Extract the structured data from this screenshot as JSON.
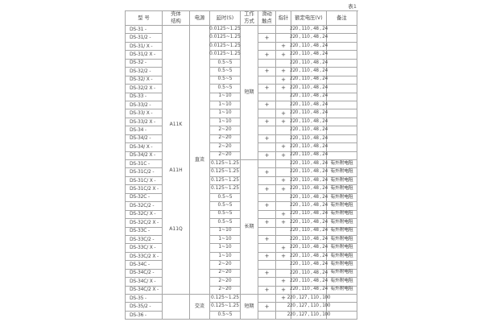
{
  "page": {
    "table_label": "表1"
  },
  "header": {
    "col_model": "型 号",
    "col_case": [
      "壳体",
      "结构"
    ],
    "col_power": "电源",
    "col_delay": "延时(S)",
    "col_mode": [
      "工作",
      "方式"
    ],
    "col_contact": [
      "滑动",
      "触点"
    ],
    "col_pointer": "指针",
    "col_voltage": "额定电压(V)",
    "col_remark": "备注"
  },
  "merged": {
    "case_dc_block_labels": {
      "a11k": "A11K",
      "a11h": "A11H",
      "a11q": "A11Q"
    },
    "power_dc": "直流",
    "power_ac": "交流",
    "mode_dc_plain": "短期",
    "mode_dc_c": "长期",
    "mode_ac": "短期"
  },
  "rows": [
    {
      "model": "DS-31 -",
      "delay": "0.0125~1.25",
      "contact": "",
      "pointer": "",
      "voltage": "220 , 110 , 48 , 24",
      "remark": ""
    },
    {
      "model": "DS-31/2 -",
      "delay": "0.0125~1.25",
      "contact": "+",
      "pointer": "",
      "voltage": "220 , 110 , 48 , 24",
      "remark": ""
    },
    {
      "model": "DS-31/ X -",
      "delay": "0.0125~1.25",
      "contact": "",
      "pointer": "+",
      "voltage": "220 , 110 , 48 , 24",
      "remark": ""
    },
    {
      "model": "DS-31/2 X -",
      "delay": "0.0125~1.25",
      "contact": "+",
      "pointer": "+",
      "voltage": "220 , 110 , 48 , 24",
      "remark": ""
    },
    {
      "model": "DS-32 -",
      "delay": "0.5~5",
      "contact": "",
      "pointer": "",
      "voltage": "220 , 110 , 48 , 24",
      "remark": ""
    },
    {
      "model": "DS-32/2 -",
      "delay": "0.5~5",
      "contact": "+",
      "pointer": "+",
      "voltage": "220 , 110 , 48 , 24",
      "remark": ""
    },
    {
      "model": "DS-32/ X -",
      "delay": "0.5~5",
      "contact": "",
      "pointer": "+",
      "voltage": "220 , 110 , 48 , 24",
      "remark": ""
    },
    {
      "model": "DS-32/2 X -",
      "delay": "0.5~5",
      "contact": "+",
      "pointer": "+",
      "voltage": "220 , 110 , 48 , 24",
      "remark": ""
    },
    {
      "model": "DS-33 -",
      "delay": "1~10",
      "contact": "",
      "pointer": "",
      "voltage": "220 , 110 , 48 , 24",
      "remark": ""
    },
    {
      "model": "DS-33/2 -",
      "delay": "1~10",
      "contact": "+",
      "pointer": "",
      "voltage": "220 , 110 , 48 , 24",
      "remark": ""
    },
    {
      "model": "DS-33/ X -",
      "delay": "1~10",
      "contact": "",
      "pointer": "+",
      "voltage": "220 , 110 , 48 , 24",
      "remark": ""
    },
    {
      "model": "DS-33/2 X -",
      "delay": "1~10",
      "contact": "+",
      "pointer": "+",
      "voltage": "220 , 110 , 48 , 24",
      "remark": ""
    },
    {
      "model": "DS-34 -",
      "delay": "2~20",
      "contact": "",
      "pointer": "",
      "voltage": "220 , 110 , 48 , 24",
      "remark": ""
    },
    {
      "model": "DS-34/2 -",
      "delay": "2~20",
      "contact": "+",
      "pointer": "",
      "voltage": "220 , 110 , 48 , 24",
      "remark": ""
    },
    {
      "model": "DS-34/ X -",
      "delay": "2~20",
      "contact": "",
      "pointer": "+",
      "voltage": "220 , 110 , 48 , 24",
      "remark": ""
    },
    {
      "model": "DS-34/2 X -",
      "delay": "2~20",
      "contact": "+",
      "pointer": "+",
      "voltage": "220 , 110 , 48 , 24",
      "remark": ""
    },
    {
      "model": "DS-31C -",
      "delay": "0.125~1.25",
      "contact": "",
      "pointer": "",
      "voltage": "220 , 110 , 48 , 24",
      "remark": "有外附电阻"
    },
    {
      "model": "DS-31C/2 -",
      "delay": "0.125~1.25",
      "contact": "+",
      "pointer": "",
      "voltage": "220 , 110 , 48 , 24",
      "remark": "有外附电阻"
    },
    {
      "model": "DS-31C/ X -",
      "delay": "0.125~1.25",
      "contact": "",
      "pointer": "+",
      "voltage": "220 , 110 , 48 , 24",
      "remark": "有外附电阻"
    },
    {
      "model": "DS-31C/2 X -",
      "delay": "0.125~1.25",
      "contact": "+",
      "pointer": "+",
      "voltage": "220 , 110 , 48 , 24",
      "remark": "有外附电阻"
    },
    {
      "model": "DS-32C -",
      "delay": "0.5~5",
      "contact": "",
      "pointer": "",
      "voltage": "220 , 110 , 48 , 24",
      "remark": "有外附电阻"
    },
    {
      "model": "DS-32C/2 -",
      "delay": "0.5~5",
      "contact": "+",
      "pointer": "",
      "voltage": "220 , 110 , 48 , 24",
      "remark": "有外附电阻"
    },
    {
      "model": "DS-32C/ X -",
      "delay": "0.5~5",
      "contact": "",
      "pointer": "+",
      "voltage": "220 , 110 , 48 , 24",
      "remark": "有外附电阻"
    },
    {
      "model": "DS-32C/2 X -",
      "delay": "0.5~5",
      "contact": "+",
      "pointer": "+",
      "voltage": "220 , 110 , 48 , 24",
      "remark": "有外附电阻"
    },
    {
      "model": "DS-33C -",
      "delay": "1~10",
      "contact": "",
      "pointer": "",
      "voltage": "220 , 110 , 48 , 24",
      "remark": "有外附电阻"
    },
    {
      "model": "DS-33C/2 -",
      "delay": "1~10",
      "contact": "+",
      "pointer": "",
      "voltage": "220 , 110 , 48 , 24",
      "remark": "有外附电阻"
    },
    {
      "model": "DS-33C/ X -",
      "delay": "1~10",
      "contact": "",
      "pointer": "+",
      "voltage": "220 , 110 , 48 , 24",
      "remark": "有外附电阻"
    },
    {
      "model": "DS-33C/2 X -",
      "delay": "1~10",
      "contact": "+",
      "pointer": "+",
      "voltage": "220 , 110 , 48 , 24",
      "remark": "有外附电阻"
    },
    {
      "model": "DS-34C -",
      "delay": "2~20",
      "contact": "",
      "pointer": "",
      "voltage": "220 , 110 , 48 , 24",
      "remark": "有外附电阻"
    },
    {
      "model": "DS-34C/2 -",
      "delay": "2~20",
      "contact": "+",
      "pointer": "",
      "voltage": "220 , 110 , 48 , 24",
      "remark": "有外附电阻"
    },
    {
      "model": "DS-34C/ X -",
      "delay": "2~20",
      "contact": "",
      "pointer": "+",
      "voltage": "220 , 110 , 48 , 24",
      "remark": "有外附电阻"
    },
    {
      "model": "DS-34C/2 X -",
      "delay": "2~20",
      "contact": "+",
      "pointer": "+",
      "voltage": "220 , 110 , 48 , 24",
      "remark": "有外附电阻"
    },
    {
      "model": "DS-35 -",
      "delay": "0.125~1.25",
      "contact": "",
      "pointer": "+",
      "voltage": "220 , 127 , 110 , 100",
      "remark": ""
    },
    {
      "model": "DS-35/2 -",
      "delay": "0.125~1.25",
      "contact": "+",
      "pointer": "",
      "voltage": "220 , 127 , 110 , 100",
      "remark": ""
    },
    {
      "model": "DS-36 -",
      "delay": "0.5~5",
      "contact": "",
      "pointer": "",
      "voltage": "220 , 127 , 110 , 100",
      "remark": ""
    }
  ]
}
